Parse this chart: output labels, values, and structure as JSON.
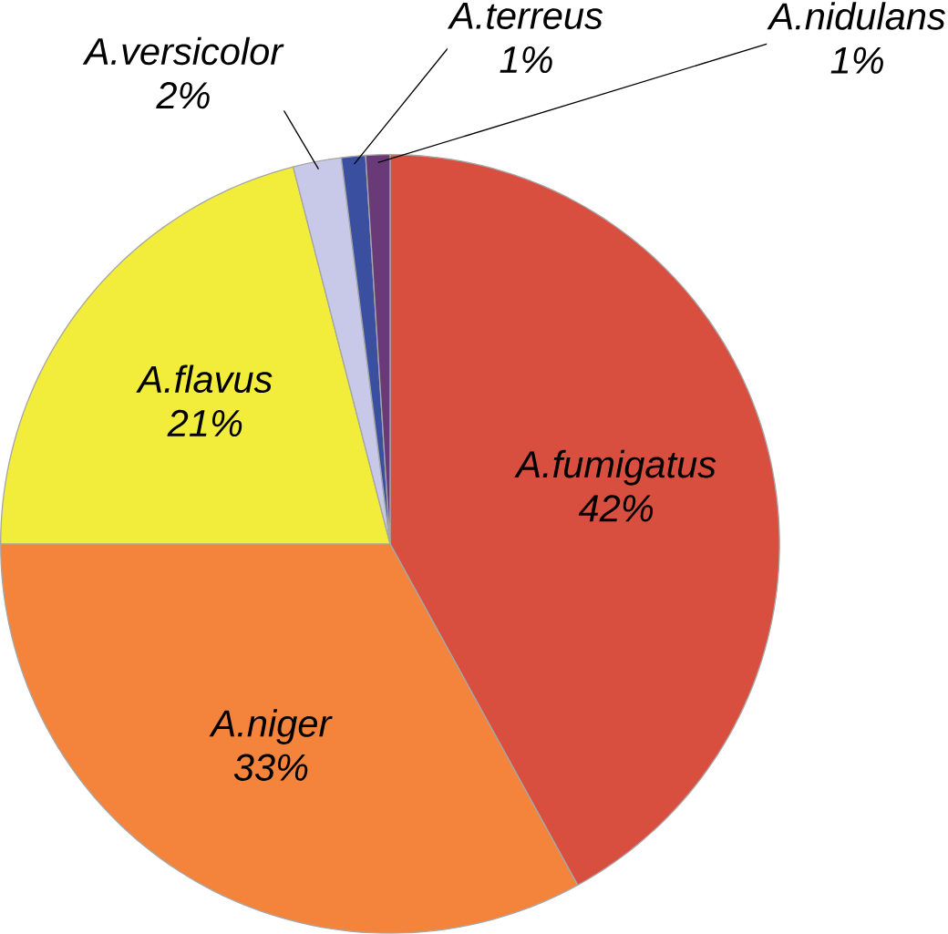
{
  "chart_data": {
    "type": "pie",
    "categories": [
      "A.fumigatus",
      "A.niger",
      "A.flavus",
      "A.versicolor",
      "A.terreus",
      "A.nidulans"
    ],
    "values": [
      42,
      33,
      21,
      2,
      1,
      1
    ],
    "value_labels": [
      "42%",
      "33%",
      "21%",
      "2%",
      "1%",
      "1%"
    ],
    "colors": [
      "#d94f3f",
      "#f4843c",
      "#f2ec3a",
      "#c8c8e8",
      "#3a4fa0",
      "#6a3a78"
    ]
  }
}
